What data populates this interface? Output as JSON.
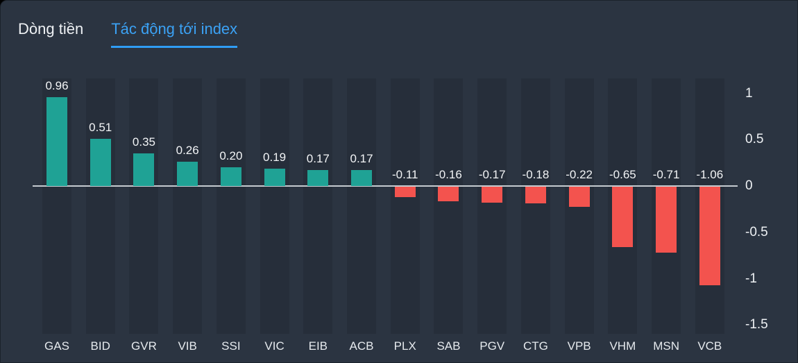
{
  "tabs": [
    {
      "label": "Dòng tiền",
      "active": false
    },
    {
      "label": "Tác động tới index",
      "active": true
    }
  ],
  "colors": {
    "background": "#2b3441",
    "positive_bar": "#1fa295",
    "negative_bar": "#f3534e",
    "active_tab": "#3ba2f5",
    "zero_line": "#c6cbd0",
    "text": "#eef1f4"
  },
  "chart_data": {
    "type": "bar",
    "title": "Tác động tới index",
    "xlabel": "",
    "ylabel": "",
    "categories": [
      "GAS",
      "BID",
      "GVR",
      "VIB",
      "SSI",
      "VIC",
      "EIB",
      "ACB",
      "PLX",
      "SAB",
      "PGV",
      "CTG",
      "VPB",
      "VHM",
      "MSN",
      "VCB"
    ],
    "values": [
      0.96,
      0.51,
      0.35,
      0.26,
      0.2,
      0.19,
      0.17,
      0.17,
      -0.11,
      -0.16,
      -0.17,
      -0.18,
      -0.22,
      -0.65,
      -0.71,
      -1.06
    ],
    "value_labels": [
      "0.96",
      "0.51",
      "0.35",
      "0.26",
      "0.20",
      "0.19",
      "0.17",
      "0.17",
      "-0.11",
      "-0.16",
      "-0.17",
      "-0.18",
      "-0.22",
      "-0.65",
      "-0.71",
      "-1.06"
    ],
    "y_ticks": [
      "1",
      "0.5",
      "0",
      "-0.5",
      "-1",
      "-1.5"
    ],
    "y_tick_values": [
      1,
      0.5,
      0,
      -0.5,
      -1,
      -1.5
    ],
    "ylim": [
      -1.5,
      1
    ],
    "grid": "off",
    "legend": "none",
    "series_colors": {
      "positive": "#1fa295",
      "negative": "#f3534e"
    }
  }
}
